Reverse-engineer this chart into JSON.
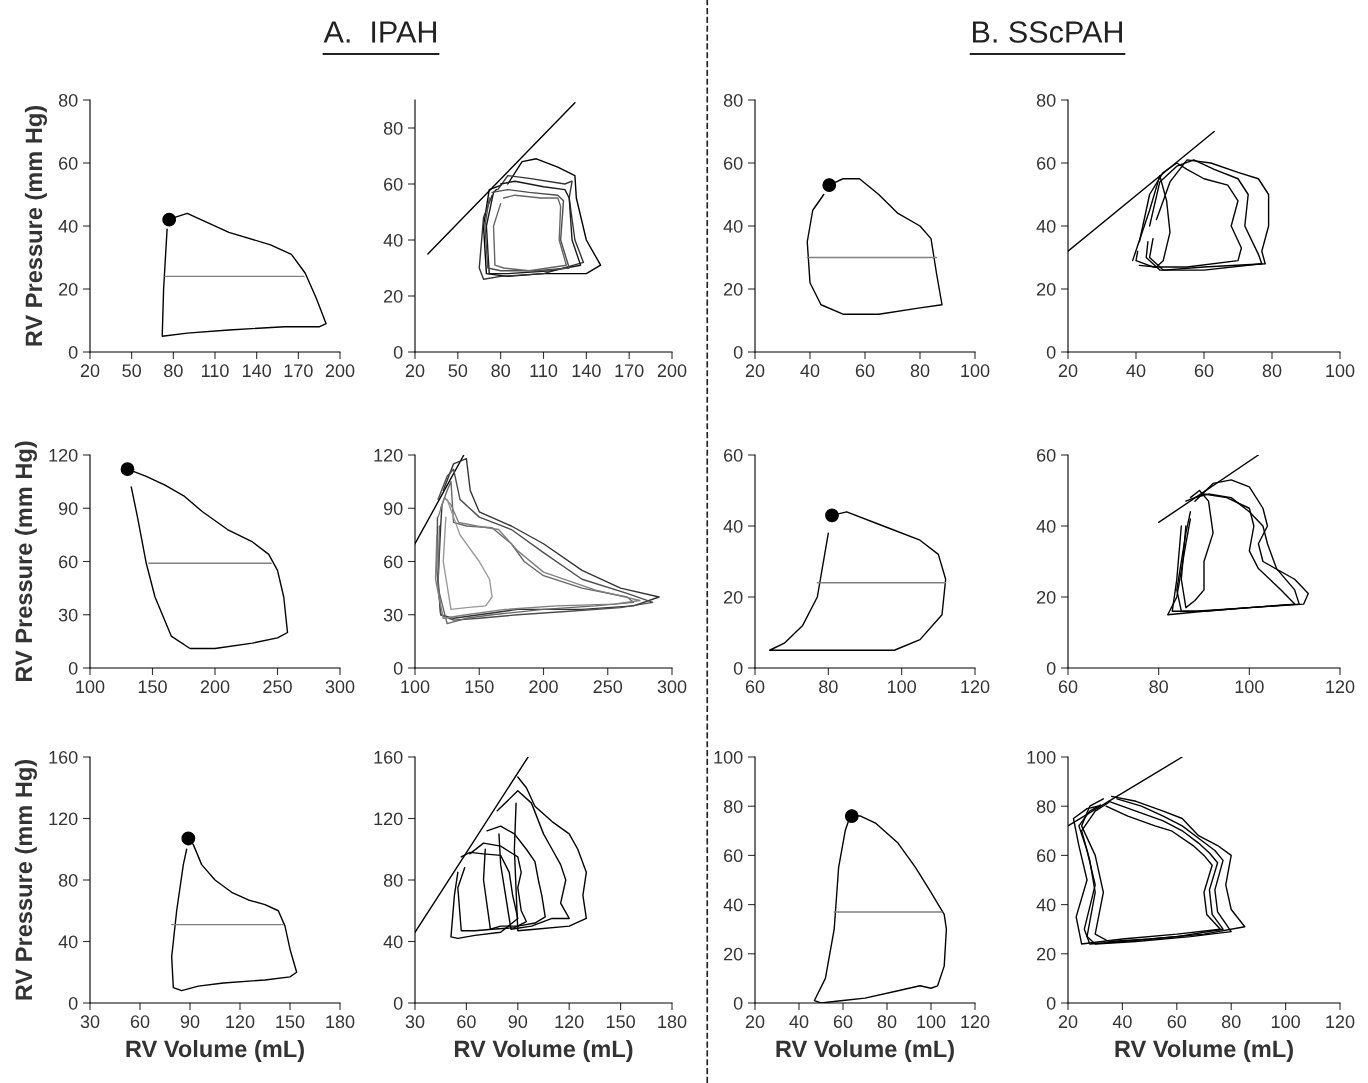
{
  "chart_data": [
    {
      "type": "line",
      "title": "A.  IPAH",
      "ylabel": "RV Pressure (mm Hg)",
      "xlim": [
        20,
        200
      ],
      "xticks": [
        20,
        50,
        80,
        110,
        140,
        170,
        200
      ],
      "ylim": [
        0,
        80
      ],
      "yticks": [
        0,
        20,
        40,
        60,
        80
      ],
      "series": [
        {
          "color": "#000000",
          "x": [
            76,
            90,
            120,
            150,
            165,
            175,
            183,
            190,
            185,
            160,
            120,
            90,
            72,
            73,
            75.5
          ],
          "values": [
            42,
            44,
            38,
            34,
            31,
            25,
            17,
            9,
            8,
            8,
            7,
            6,
            5,
            20,
            39
          ]
        },
        {
          "color": "#808080",
          "x": [
            74,
            174
          ],
          "values": [
            24,
            24
          ]
        },
        {
          "type": "scatter",
          "marker": "circle",
          "color": "#000000",
          "x": [
            77
          ],
          "values": [
            42
          ]
        }
      ]
    },
    {
      "type": "line",
      "xlim": [
        20,
        200
      ],
      "xticks": [
        20,
        50,
        80,
        110,
        140,
        170,
        200
      ],
      "ylim": [
        0,
        90
      ],
      "yticks": [
        0,
        20,
        40,
        60,
        80
      ],
      "series": [
        {
          "color": "#000000",
          "x": [
            29,
            132
          ],
          "values": [
            35,
            89
          ]
        },
        {
          "color": "#000000",
          "x": [
            85,
            95,
            105,
            120,
            132,
            133,
            140,
            150,
            140,
            110,
            85,
            70,
            68,
            72,
            80
          ],
          "values": [
            60,
            68,
            69,
            66,
            63,
            55,
            40,
            31,
            28,
            28,
            27,
            28,
            45,
            58,
            59.5
          ]
        },
        {
          "color": "#333333",
          "x": [
            78,
            85,
            100,
            125,
            130,
            128,
            132,
            138,
            110,
            80,
            68,
            65,
            68,
            74
          ],
          "values": [
            58,
            63,
            62,
            60,
            61,
            55,
            40,
            32,
            28,
            27,
            26,
            30,
            48,
            56
          ]
        },
        {
          "color": "#1a1a1a",
          "x": [
            80,
            90,
            110,
            125,
            128,
            130,
            136,
            115,
            85,
            72,
            70,
            75,
            77
          ],
          "values": [
            60,
            61,
            59,
            58,
            55,
            40,
            31,
            29,
            28,
            28,
            45,
            57,
            58
          ]
        },
        {
          "color": "#4d4d4d",
          "x": [
            74,
            85,
            100,
            120,
            124,
            122,
            128,
            105,
            80,
            71,
            69,
            72
          ],
          "values": [
            57,
            58,
            57,
            56,
            54,
            40,
            30,
            29,
            29,
            30,
            45,
            55
          ]
        },
        {
          "color": "#666666",
          "x": [
            82,
            90,
            108,
            120,
            122,
            121,
            126,
            100,
            82,
            76,
            75,
            80
          ],
          "values": [
            55,
            56,
            55,
            55,
            52,
            40,
            31,
            29,
            30,
            31,
            45,
            53
          ]
        }
      ]
    },
    {
      "type": "line",
      "title": "B. SScPAH",
      "xlim": [
        20,
        100
      ],
      "xticks": [
        20,
        40,
        60,
        80,
        100
      ],
      "ylim": [
        0,
        80
      ],
      "yticks": [
        0,
        20,
        40,
        60,
        80
      ],
      "series": [
        {
          "color": "#000000",
          "x": [
            47,
            52,
            58,
            65,
            72,
            80,
            84,
            86,
            88,
            80,
            65,
            52,
            44,
            40,
            39,
            41,
            45
          ],
          "values": [
            53,
            55,
            55,
            50,
            44,
            40,
            36,
            25,
            15,
            14,
            12,
            12,
            15,
            22,
            35,
            45,
            50
          ]
        },
        {
          "color": "#808080",
          "x": [
            39,
            86
          ],
          "values": [
            30,
            30
          ]
        },
        {
          "type": "scatter",
          "marker": "circle",
          "color": "#000000",
          "x": [
            47
          ],
          "values": [
            53
          ]
        }
      ]
    },
    {
      "type": "line",
      "xlim": [
        20,
        100
      ],
      "xticks": [
        20,
        40,
        60,
        80,
        100
      ],
      "ylim": [
        0,
        80
      ],
      "yticks": [
        0,
        20,
        40,
        60,
        80
      ],
      "series": [
        {
          "color": "#000000",
          "x": [
            20,
            63
          ],
          "values": [
            32,
            70
          ]
        },
        {
          "color": "#000000",
          "x": [
            41,
            44,
            48,
            52,
            55,
            60,
            67,
            70,
            68,
            71,
            70,
            55,
            45,
            40,
            40.5
          ],
          "values": [
            35,
            50,
            57,
            60,
            58,
            55,
            53,
            48,
            40,
            33,
            29,
            27,
            27,
            29,
            32
          ]
        },
        {
          "color": "#000000",
          "x": [
            44,
            47,
            52,
            57,
            63,
            70,
            73,
            72,
            76,
            77,
            60,
            47,
            43,
            43.5
          ],
          "values": [
            40,
            54,
            59,
            61,
            58,
            55,
            50,
            40,
            31,
            28,
            26,
            26,
            30,
            35
          ]
        },
        {
          "color": "#000000",
          "x": [
            46,
            50,
            55,
            62,
            70,
            76,
            79,
            79,
            77,
            78,
            60,
            48,
            44,
            45
          ],
          "values": [
            42,
            54,
            61,
            60,
            57,
            55,
            50,
            40,
            32,
            28,
            27,
            26,
            30,
            36
          ]
        },
        {
          "color": "#000000",
          "x": [
            39,
            44,
            47,
            49,
            50,
            48,
            46,
            41
          ],
          "values": [
            29,
            45,
            56,
            48,
            38,
            29,
            27,
            27.5
          ]
        }
      ]
    },
    {
      "type": "line",
      "ylabel": "RV Pressure (mm Hg)",
      "xlim": [
        100,
        300
      ],
      "xticks": [
        100,
        150,
        200,
        250,
        300
      ],
      "ylim": [
        0,
        120
      ],
      "yticks": [
        0,
        30,
        60,
        90,
        120
      ],
      "series": [
        {
          "color": "#000000",
          "x": [
            130,
            145,
            160,
            175,
            190,
            210,
            230,
            243,
            250,
            255,
            258,
            250,
            230,
            200,
            180,
            165,
            152,
            145,
            138,
            133
          ],
          "values": [
            112,
            108,
            103,
            97,
            88,
            78,
            71,
            64,
            55,
            40,
            20,
            17,
            14,
            11,
            11,
            18,
            40,
            59,
            85,
            102
          ]
        },
        {
          "color": "#808080",
          "x": [
            147,
            245
          ],
          "values": [
            59,
            59
          ]
        },
        {
          "type": "scatter",
          "marker": "circle",
          "color": "#000000",
          "x": [
            130
          ],
          "values": [
            112
          ]
        }
      ]
    },
    {
      "type": "line",
      "xlim": [
        100,
        300
      ],
      "xticks": [
        100,
        150,
        200,
        250,
        300
      ],
      "ylim": [
        0,
        120
      ],
      "yticks": [
        0,
        30,
        60,
        90,
        120
      ],
      "series": [
        {
          "color": "#000000",
          "x": [
            100,
            138
          ],
          "values": [
            70,
            120
          ]
        },
        {
          "color": "#333333",
          "x": [
            122,
            130,
            140,
            143,
            150,
            175,
            200,
            230,
            260,
            290,
            270,
            230,
            180,
            150,
            130,
            120,
            118,
            120,
            121
          ],
          "values": [
            100,
            115,
            118,
            100,
            88,
            80,
            70,
            55,
            45,
            40,
            35,
            33,
            33,
            30,
            28,
            30,
            50,
            80,
            92
          ]
        },
        {
          "color": "#4d4d4d",
          "x": [
            118,
            125,
            130,
            135,
            150,
            175,
            200,
            230,
            265,
            285,
            260,
            220,
            180,
            150,
            130,
            120,
            117,
            117.5
          ],
          "values": [
            95,
            108,
            112,
            95,
            85,
            78,
            65,
            50,
            42,
            37,
            34,
            32,
            30,
            28,
            27,
            30,
            55,
            85
          ]
        },
        {
          "color": "#666666",
          "x": [
            120,
            125,
            128,
            130,
            140,
            160,
            175,
            185,
            200,
            230,
            265,
            270,
            240,
            200,
            160,
            140,
            125,
            118,
            119
          ],
          "values": [
            90,
            100,
            105,
            82,
            80,
            79,
            70,
            60,
            52,
            45,
            40,
            37,
            35,
            33,
            30,
            28,
            25,
            45,
            80
          ]
        },
        {
          "color": "#808080",
          "x": [
            118,
            123,
            128,
            134,
            148,
            165,
            180,
            200,
            240,
            275,
            255,
            210,
            170,
            140,
            122,
            116,
            117
          ],
          "values": [
            85,
            96,
            92,
            82,
            80,
            78,
            66,
            54,
            44,
            38,
            36,
            35,
            33,
            30,
            28,
            50,
            75
          ]
        },
        {
          "color": "#999999",
          "x": [
            125,
            130,
            135,
            150,
            158,
            160,
            155,
            140,
            128,
            122,
            124
          ],
          "values": [
            95,
            85,
            75,
            60,
            50,
            40,
            35,
            34,
            33,
            60,
            85
          ]
        }
      ]
    },
    {
      "type": "line",
      "xlim": [
        60,
        120
      ],
      "xticks": [
        60,
        80,
        100,
        120
      ],
      "ylim": [
        0,
        60
      ],
      "yticks": [
        0,
        20,
        40,
        60
      ],
      "series": [
        {
          "color": "#000000",
          "x": [
            81,
            85,
            95,
            105,
            110,
            112,
            111,
            105,
            98,
            80,
            70,
            64,
            68,
            73,
            77,
            79,
            80
          ],
          "values": [
            43,
            44,
            40,
            36,
            32,
            25,
            15,
            8,
            5,
            5,
            5,
            5,
            7,
            12,
            20,
            32,
            38
          ]
        },
        {
          "color": "#808080",
          "x": [
            77,
            112
          ],
          "values": [
            24,
            24
          ]
        },
        {
          "type": "scatter",
          "marker": "circle",
          "color": "#000000",
          "x": [
            81
          ],
          "values": [
            43
          ]
        }
      ]
    },
    {
      "type": "line",
      "xlim": [
        60,
        120
      ],
      "xticks": [
        60,
        80,
        100,
        120
      ],
      "ylim": [
        0,
        60
      ],
      "yticks": [
        0,
        20,
        40,
        60
      ],
      "series": [
        {
          "color": "#000000",
          "x": [
            80,
            102
          ],
          "values": [
            41,
            60
          ]
        },
        {
          "color": "#000000",
          "x": [
            88,
            92,
            96,
            100,
            103,
            104,
            102,
            103,
            110,
            113,
            112,
            100,
            90,
            82,
            84,
            86,
            87
          ],
          "values": [
            47,
            52,
            53,
            51,
            45,
            40,
            35,
            30,
            25,
            21,
            18,
            17,
            16,
            15,
            20,
            35,
            42
          ]
        },
        {
          "color": "#000000",
          "x": [
            86,
            90,
            95,
            100,
            101,
            100,
            102,
            107,
            110,
            100,
            88,
            83,
            84,
            85
          ],
          "values": [
            47,
            49,
            48,
            45,
            40,
            33,
            28,
            22,
            18,
            17,
            16,
            16,
            25,
            40
          ]
        },
        {
          "color": "#000000",
          "x": [
            87,
            89,
            91,
            92,
            90,
            90,
            88,
            86,
            85,
            86
          ],
          "values": [
            48,
            50,
            47,
            38,
            30,
            22,
            19,
            17,
            25,
            40
          ]
        },
        {
          "color": "#000000",
          "x": [
            88,
            91,
            96,
            100,
            103,
            104,
            106,
            110,
            111,
            100,
            90,
            85,
            84,
            86,
            87
          ],
          "values": [
            48,
            49,
            48,
            44,
            40,
            35,
            28,
            22,
            18,
            17,
            16,
            16,
            22,
            38,
            44
          ]
        }
      ]
    },
    {
      "type": "line",
      "ylabel": "RV Pressure (mm Hg)",
      "xlabel": "RV Volume (mL)",
      "xlim": [
        30,
        180
      ],
      "xticks": [
        30,
        60,
        90,
        120,
        150,
        180
      ],
      "ylim": [
        0,
        160
      ],
      "yticks": [
        0,
        40,
        80,
        120,
        160
      ],
      "series": [
        {
          "color": "#000000",
          "x": [
            89,
            92,
            97,
            105,
            115,
            125,
            135,
            143,
            147,
            150,
            154,
            150,
            135,
            110,
            95,
            85,
            80,
            79,
            82,
            86,
            88
          ],
          "values": [
            107,
            103,
            90,
            80,
            72,
            67,
            64,
            60,
            50,
            35,
            20,
            17,
            15,
            13,
            11,
            8,
            10,
            30,
            60,
            90,
            100
          ]
        },
        {
          "color": "#808080",
          "x": [
            79,
            146
          ],
          "values": [
            51,
            51
          ]
        },
        {
          "type": "scatter",
          "marker": "circle",
          "color": "#000000",
          "x": [
            89
          ],
          "values": [
            107
          ]
        }
      ]
    },
    {
      "type": "line",
      "xlabel": "RV Volume (mL)",
      "xlim": [
        30,
        180
      ],
      "xticks": [
        30,
        60,
        90,
        120,
        150,
        180
      ],
      "ylim": [
        0,
        160
      ],
      "yticks": [
        0,
        40,
        80,
        120,
        160
      ],
      "series": [
        {
          "color": "#000000",
          "x": [
            30,
            96
          ],
          "values": [
            46,
            160
          ]
        },
        {
          "color": "#000000",
          "x": [
            90,
            95,
            100,
            110,
            120,
            125,
            130,
            128,
            130,
            120,
            100,
            90,
            88,
            89
          ],
          "values": [
            147,
            140,
            128,
            118,
            110,
            100,
            85,
            70,
            55,
            50,
            48,
            47,
            100,
            130
          ]
        },
        {
          "color": "#000000",
          "x": [
            78,
            90,
            98,
            105,
            110,
            115,
            118,
            115,
            120,
            110,
            98,
            86,
            80,
            79
          ],
          "values": [
            125,
            138,
            130,
            110,
            100,
            90,
            80,
            65,
            55,
            55,
            50,
            48,
            90,
            110
          ]
        },
        {
          "color": "#000000",
          "x": [
            72,
            80,
            88,
            95,
            100,
            102,
            104,
            106,
            100,
            90,
            80,
            74,
            70,
            71
          ],
          "values": [
            112,
            115,
            110,
            100,
            92,
            80,
            70,
            56,
            52,
            50,
            50,
            48,
            80,
            100
          ]
        },
        {
          "color": "#000000",
          "x": [
            62,
            70,
            80,
            90,
            92,
            90,
            92,
            95,
            88,
            75,
            65,
            57,
            55,
            59
          ],
          "values": [
            97,
            104,
            102,
            95,
            85,
            75,
            60,
            53,
            49,
            48,
            47,
            47,
            75,
            88
          ]
        },
        {
          "color": "#000000",
          "x": [
            57,
            62,
            70,
            80,
            85,
            87,
            90,
            80,
            65,
            55,
            51,
            53,
            55
          ],
          "values": [
            95,
            98,
            97,
            96,
            85,
            70,
            55,
            46,
            44,
            42,
            43,
            70,
            85
          ]
        }
      ]
    },
    {
      "type": "line",
      "xlabel": "RV Volume (mL)",
      "xlim": [
        20,
        120
      ],
      "xticks": [
        20,
        40,
        60,
        80,
        100,
        120
      ],
      "ylim": [
        0,
        100
      ],
      "yticks": [
        0,
        20,
        40,
        60,
        80,
        100
      ],
      "series": [
        {
          "color": "#000000",
          "x": [
            64,
            68,
            75,
            85,
            93,
            100,
            104,
            106,
            107,
            106,
            103,
            100,
            95,
            85,
            70,
            60,
            50,
            47,
            52,
            56,
            58,
            61,
            62.5
          ],
          "values": [
            76,
            76,
            73,
            65,
            55,
            45,
            39,
            36,
            30,
            15,
            7,
            6,
            7,
            5,
            2,
            1,
            0,
            1,
            10,
            30,
            55,
            70,
            74
          ]
        },
        {
          "color": "#808080",
          "x": [
            56,
            105
          ],
          "values": [
            37,
            37
          ]
        },
        {
          "type": "scatter",
          "marker": "circle",
          "color": "#000000",
          "x": [
            64
          ],
          "values": [
            76
          ]
        }
      ]
    },
    {
      "type": "line",
      "xlabel": "RV Volume (mL)",
      "xlim": [
        20,
        120
      ],
      "xticks": [
        20,
        40,
        60,
        80,
        100,
        120
      ],
      "ylim": [
        0,
        100
      ],
      "yticks": [
        0,
        20,
        40,
        60,
        80,
        100
      ],
      "series": [
        {
          "color": "#000000",
          "x": [
            20,
            62
          ],
          "values": [
            72,
            100
          ]
        },
        {
          "color": "#000000",
          "x": [
            36,
            45,
            55,
            62,
            68,
            75,
            80,
            78,
            80,
            85,
            70,
            50,
            35,
            30,
            33,
            30,
            25,
            28,
            33
          ],
          "values": [
            84,
            82,
            78,
            75,
            68,
            64,
            60,
            48,
            38,
            31,
            28,
            26,
            25,
            28,
            45,
            60,
            72,
            80,
            83
          ]
        },
        {
          "color": "#000000",
          "x": [
            38,
            47,
            55,
            62,
            68,
            74,
            77,
            74,
            75,
            80,
            65,
            45,
            30,
            27,
            30,
            28,
            25,
            30,
            35
          ],
          "values": [
            83,
            80,
            76,
            72,
            67,
            62,
            58,
            46,
            37,
            29,
            27,
            25,
            24,
            27,
            45,
            58,
            70,
            78,
            81.5
          ]
        },
        {
          "color": "#000000",
          "x": [
            35,
            45,
            55,
            62,
            68,
            72,
            75,
            72,
            73,
            77,
            60,
            40,
            28,
            26,
            30,
            27,
            24,
            28,
            32
          ],
          "values": [
            82,
            78,
            74,
            70,
            65,
            61,
            57,
            46,
            36,
            30,
            27,
            25,
            24,
            30,
            48,
            62,
            72,
            78,
            80.5
          ]
        },
        {
          "color": "#000000",
          "x": [
            34,
            42,
            52,
            58,
            66,
            70,
            73,
            70,
            71,
            76,
            60,
            40,
            25,
            23,
            27,
            24,
            22,
            27,
            31
          ],
          "values": [
            80,
            76,
            72,
            70,
            64,
            60,
            56,
            45,
            36,
            30,
            28,
            26,
            24,
            35,
            50,
            64,
            75,
            79,
            80
          ]
        }
      ]
    }
  ]
}
